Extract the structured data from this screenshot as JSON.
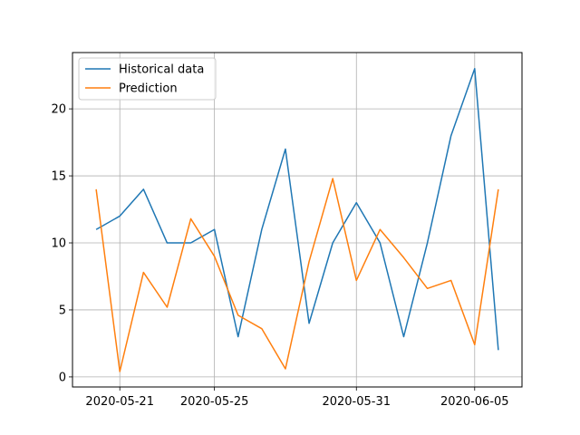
{
  "chart_data": {
    "type": "line",
    "x": [
      "2020-05-20",
      "2020-05-21",
      "2020-05-22",
      "2020-05-23",
      "2020-05-24",
      "2020-05-25",
      "2020-05-26",
      "2020-05-27",
      "2020-05-28",
      "2020-05-29",
      "2020-05-30",
      "2020-05-31",
      "2020-06-01",
      "2020-06-02",
      "2020-06-03",
      "2020-06-04",
      "2020-06-05",
      "2020-06-06"
    ],
    "series": [
      {
        "name": "Historical data",
        "color": "#1f77b4",
        "values": [
          11,
          12,
          14,
          10,
          10,
          11,
          3,
          11,
          17,
          4,
          10,
          13,
          10,
          3,
          10,
          18,
          23,
          2
        ]
      },
      {
        "name": "Prediction",
        "color": "#ff7f0e",
        "values": [
          14,
          0.4,
          7.8,
          5.2,
          11.8,
          9.0,
          4.6,
          3.6,
          0.6,
          8.6,
          14.8,
          7.2,
          11.0,
          8.9,
          6.6,
          7.2,
          2.4,
          14.0
        ]
      }
    ],
    "xticks": [
      "2020-05-21",
      "2020-05-25",
      "2020-05-31",
      "2020-06-05"
    ],
    "yticks": [
      0,
      5,
      10,
      15,
      20
    ],
    "xlim": [
      "2020-05-19",
      "2020-06-07"
    ],
    "ylim": [
      -0.75,
      24.2
    ],
    "grid": true,
    "legend": "upper-left",
    "title": "",
    "xlabel": "",
    "ylabel": ""
  }
}
